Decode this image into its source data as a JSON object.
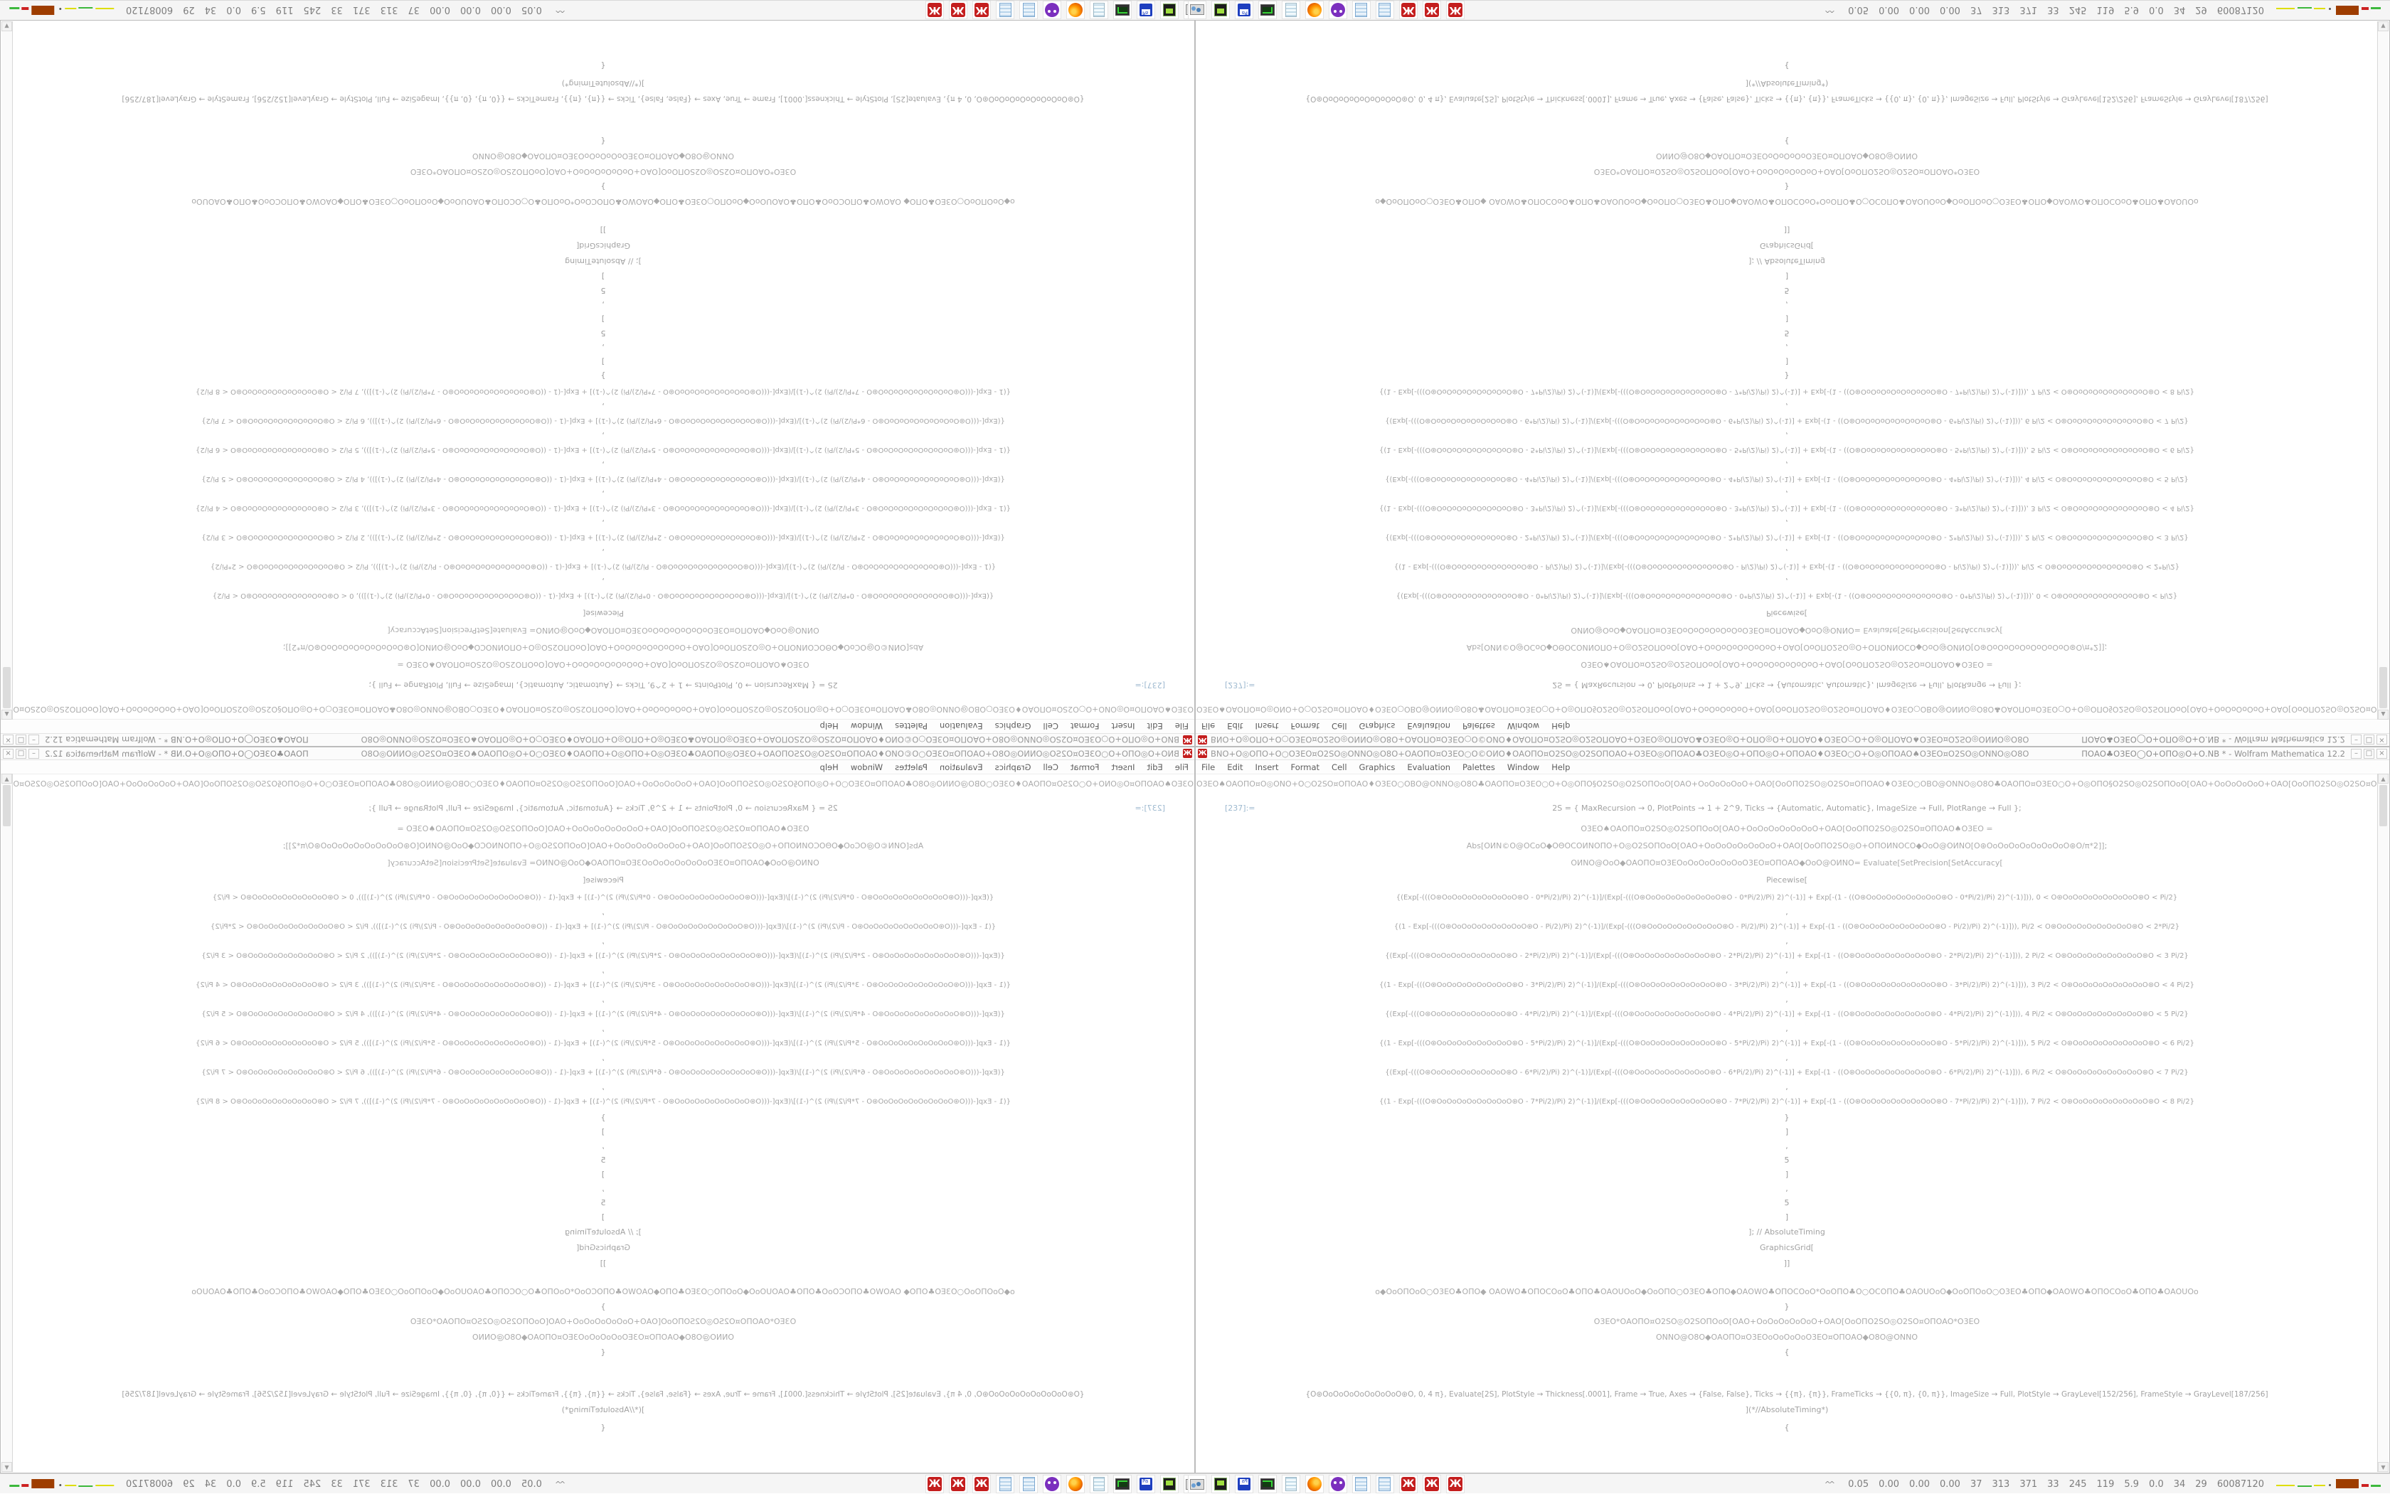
{
  "taskbar": {
    "status": {
      "chevron": "^^",
      "values": [
        "0.05",
        "0.00",
        "0.00",
        "0.00",
        "37",
        "313",
        "371",
        "33",
        "245",
        "119",
        "5.9",
        "0.0",
        "34",
        "29",
        "60087120"
      ],
      "chart_colors": [
        "#dede00",
        "#3cb83c",
        "#dede00",
        "#555555",
        "#9e3d00",
        "#cc2222",
        "#3cb83c"
      ]
    },
    "dock_icons": [
      {
        "name": "mathematica-icon",
        "cls": "ic-mma",
        "glyph": "Ж"
      },
      {
        "name": "mathematica-icon",
        "cls": "ic-mma",
        "glyph": "Ж"
      },
      {
        "name": "mathematica-icon",
        "cls": "ic-mma",
        "glyph": "Ж"
      },
      {
        "name": "calculator-icon",
        "cls": "ic-calc",
        "glyph": ""
      },
      {
        "name": "calculator-icon",
        "cls": "ic-calc",
        "glyph": ""
      },
      {
        "name": "purple-owl-app-icon",
        "cls": "ic-owl",
        "glyph": ""
      },
      {
        "name": "firefox-icon",
        "cls": "ic-firefox",
        "glyph": ""
      },
      {
        "name": "notepad-icon",
        "cls": "ic-notepad",
        "glyph": ""
      },
      {
        "name": "terminal-monitor-icon",
        "cls": "ic-screen",
        "glyph": ""
      },
      {
        "name": "floppy-save-icon",
        "cls": "ic-floppy",
        "glyph": ""
      },
      {
        "name": "console-64-icon",
        "cls": "ic-console",
        "glyph": ""
      },
      {
        "name": "monitor-gear-icon",
        "cls": "ic-mongear",
        "glyph": ""
      }
    ]
  },
  "window": {
    "icon_glyph": "Ж",
    "title_garbled": "ΒΝΟ+Ο◎ΟΠΟ+Ο○Ο3ΕΟ¤Ο2SΟ◎ΟΝΝΟ◎Ο8Ο+ΟΑΟΠΟ¤Ο3ΕΟ○Ο©ΟИΟ♦ΟΑΟΠΟ¤Ο2SΟ◎Ο2SΟΠΟΑΟ+Ο3ΕΟ◎ΟΠΟΑΟ♣Ο3ΕΟ◎Ο+ΟΠΟ◎Ο+ΟΠΟΑΟ♦Ο3ΕΟ○Ο+Ο◎ΟΠΟΑΟ♠Ο3ΕΟ¤Ο2SΟ◎ΟΝΝΟ◎Ο8Ο",
    "title_suffix": "ΠΟΑΟ♣Ο3ΕΟ◯Ο+ΟΠΟ◎Ο+Ο.NB * - Wolfram Mathematica 12.2",
    "controls": [
      {
        "name": "minimize-button",
        "glyph": "–"
      },
      {
        "name": "restore-button",
        "glyph": "□"
      },
      {
        "name": "close-button",
        "glyph": "×"
      }
    ],
    "menus": [
      {
        "label": "File"
      },
      {
        "label": "Edit"
      },
      {
        "label": "Insert"
      },
      {
        "label": "Format"
      },
      {
        "label": "Cell"
      },
      {
        "label": "Graphics"
      },
      {
        "label": "Evaluation"
      },
      {
        "label": "Palettes"
      },
      {
        "label": "Window"
      },
      {
        "label": "Help"
      }
    ],
    "scroll_up": "▲",
    "scroll_down": "▼",
    "content_rows": [
      {
        "cls": "g",
        "mt": 4,
        "t": "Ο3ΕΟ♠ΟΑΟΠΟ¤Ο◎ΟΝΟ+Ο○Ο2SΟ¤ΟΠΟΑΟ♦Ο3ΕΟ○ΟΒΟ@ΟΝΝΟ◎Ο8Ο♣ΟΑΟΠΟ¤Ο3ΕΟ○Ο+Ο◎ΟΠΟ§Ο2SΟ◎Ο2SΟΠΟοΟ[ΟΑΟ+ΟοΟοΟοΟοΟ+ΟΑΟ[ΟοΟΠΟ2SΟ◎Ο2SΟ¤ΟΠΟΑΟ♦Ο3ΕΟ○ΟΒΟ@ΟΝΝΟ◎Ο8Ο♣ΟΑΟΠΟ¤Ο3ΕΟ○Ο+Ο◎ΟΠΟ§Ο2SΟ◎Ο2SΟΠΟοΟ[ΟΑΟ+ΟοΟοΟοΟοΟ+ΟΑΟ[ΟοΟΠΟ2SΟ◎Ο2SΟ¤ΟΠΟΑΟ♦Ο3ΕΟ○ΟΒΟ@ΟΝΝΟ◎Ο8Ο♣ΟΑΟΠΟ"
      },
      {
        "cls": "c first",
        "mt": 12,
        "label": "[237]:=",
        "t": "2S = {  MaxRecursion → 0, PlotPoints → 1 + 2^9, Ticks → {Automatic, Automatic}, ImageSize → Full, PlotRange → Full  };"
      },
      {
        "cls": "g",
        "mt": 7,
        "t": "Ο3ΕΟ♠ΟΑΟΠΟ¤Ο2SΟ◎Ο2SΟΠΟοΟ[ΟΑΟ+ΟοΟοΟοΟοΟοΟοΟ+ΟΑΟ[ΟοΟΠΟ2SΟ◎Ο2SΟ¤ΟΠΟΑΟ♠Ο3ΕΟ  ="
      },
      {
        "cls": "g",
        "mt": 2,
        "t": "Abs[ΟИΝ©Ο@ΟCοΟ◆ΟΘΟCΟИΝΟΠΟ+Ο◎Ο2SΟΠΟοΟ[ΟΑΟ+ΟοΟοΟοΟοΟοΟοΟ+ΟΑΟ[ΟοΟΠΟ2SΟ◎Ο+ΟΠΟИΝΟCΟ◆ΟοΟ@ΟИΝΟ[Ο⊛ΟοΟοΟοΟοΟοΟοΟοΟ⊛Ο/π*2]];"
      },
      {
        "cls": "g",
        "mt": 2,
        "t": "ΟИΝΟ@ΟοΟ◆ΟΑΟΠΟ¤Ο3ΕΟοΟοΟοΟοΟοΟοΟ3ΕΟ¤ΟΠΟΑΟ◆ΟοΟ@ΟИΝΟ= Evaluate[SetPrecision[SetAccuracy["
      },
      {
        "cls": "c",
        "mt": 2,
        "t": "Piecewise["
      },
      {
        "cls": "p",
        "mt": 3,
        "t": "{(Exp[-(((Ο⊛ΟοΟοΟοΟοΟοΟοΟοΟ⊛Ο - 0*Pi/2)/Pi) 2)^(-1)]/(Exp[-(((Ο⊛ΟοΟοΟοΟοΟοΟοΟοΟ⊛Ο - 0*Pi/2)/Pi) 2)^(-1)] + Exp[-(1 - ((Ο⊛ΟοΟοΟοΟοΟοΟοΟοΟ⊛Ο - 0*Pi/2)/Pi) 2)^(-1)])), 0 < Ο⊛ΟοΟοΟοΟοΟοΟοΟοΟ⊛Ο < Pi/2}"
      },
      {
        "cls": "s",
        "t": ","
      },
      {
        "cls": "p",
        "t": "{(1 - Exp[-(((Ο⊛ΟοΟοΟοΟοΟοΟοΟοΟ⊛Ο - Pi/2)/Pi) 2)^(-1)]/(Exp[-(((Ο⊛ΟοΟοΟοΟοΟοΟοΟοΟ⊛Ο - Pi/2)/Pi) 2)^(-1)] + Exp[-(1 - ((Ο⊛ΟοΟοΟοΟοΟοΟοΟοΟ⊛Ο - Pi/2)/Pi) 2)^(-1)])), Pi/2 < Ο⊛ΟοΟοΟοΟοΟοΟοΟοΟ⊛Ο < 2*Pi/2}"
      },
      {
        "cls": "s",
        "t": ","
      },
      {
        "cls": "p",
        "t": "{(Exp[-(((Ο⊛ΟοΟοΟοΟοΟοΟοΟοΟ⊛Ο - 2*Pi/2)/Pi) 2)^(-1)]/(Exp[-(((Ο⊛ΟοΟοΟοΟοΟοΟοΟοΟ⊛Ο - 2*Pi/2)/Pi) 2)^(-1)] + Exp[-(1 - ((Ο⊛ΟοΟοΟοΟοΟοΟοΟοΟ⊛Ο - 2*Pi/2)/Pi) 2)^(-1)])), 2 Pi/2 < Ο⊛ΟοΟοΟοΟοΟοΟοΟοΟ⊛Ο < 3 Pi/2}"
      },
      {
        "cls": "s",
        "t": ","
      },
      {
        "cls": "p",
        "t": "{(1 - Exp[-(((Ο⊛ΟοΟοΟοΟοΟοΟοΟοΟ⊛Ο - 3*Pi/2)/Pi) 2)^(-1)]/(Exp[-(((Ο⊛ΟοΟοΟοΟοΟοΟοΟοΟ⊛Ο - 3*Pi/2)/Pi) 2)^(-1)] + Exp[-(1 - ((Ο⊛ΟοΟοΟοΟοΟοΟοΟοΟ⊛Ο - 3*Pi/2)/Pi) 2)^(-1)])), 3 Pi/2 < Ο⊛ΟοΟοΟοΟοΟοΟοΟοΟ⊛Ο < 4 Pi/2}"
      },
      {
        "cls": "s",
        "t": ","
      },
      {
        "cls": "p",
        "t": "{(Exp[-(((Ο⊛ΟοΟοΟοΟοΟοΟοΟοΟ⊛Ο - 4*Pi/2)/Pi) 2)^(-1)]/(Exp[-(((Ο⊛ΟοΟοΟοΟοΟοΟοΟοΟ⊛Ο - 4*Pi/2)/Pi) 2)^(-1)] + Exp[-(1 - ((Ο⊛ΟοΟοΟοΟοΟοΟοΟοΟ⊛Ο - 4*Pi/2)/Pi) 2)^(-1)])), 4 Pi/2 < Ο⊛ΟοΟοΟοΟοΟοΟοΟοΟ⊛Ο < 5 Pi/2}"
      },
      {
        "cls": "s",
        "t": ","
      },
      {
        "cls": "p",
        "t": "{(1 - Exp[-(((Ο⊛ΟοΟοΟοΟοΟοΟοΟοΟ⊛Ο - 5*Pi/2)/Pi) 2)^(-1)]/(Exp[-(((Ο⊛ΟοΟοΟοΟοΟοΟοΟοΟ⊛Ο - 5*Pi/2)/Pi) 2)^(-1)] + Exp[-(1 - ((Ο⊛ΟοΟοΟοΟοΟοΟοΟοΟ⊛Ο - 5*Pi/2)/Pi) 2)^(-1)])), 5 Pi/2 < Ο⊛ΟοΟοΟοΟοΟοΟοΟοΟ⊛Ο < 6 Pi/2}"
      },
      {
        "cls": "s",
        "t": ","
      },
      {
        "cls": "p",
        "t": "{(Exp[-(((Ο⊛ΟοΟοΟοΟοΟοΟοΟοΟ⊛Ο - 6*Pi/2)/Pi) 2)^(-1)]/(Exp[-(((Ο⊛ΟοΟοΟοΟοΟοΟοΟοΟ⊛Ο - 6*Pi/2)/Pi) 2)^(-1)] + Exp[-(1 - ((Ο⊛ΟοΟοΟοΟοΟοΟοΟοΟ⊛Ο - 6*Pi/2)/Pi) 2)^(-1)])), 6 Pi/2 < Ο⊛ΟοΟοΟοΟοΟοΟοΟοΟ⊛Ο < 7 Pi/2}"
      },
      {
        "cls": "s",
        "t": ","
      },
      {
        "cls": "p",
        "t": "{(1 - Exp[-(((Ο⊛ΟοΟοΟοΟοΟοΟοΟοΟ⊛Ο - 7*Pi/2)/Pi) 2)^(-1)]/(Exp[-(((Ο⊛ΟοΟοΟοΟοΟοΟοΟοΟ⊛Ο - 7*Pi/2)/Pi) 2)^(-1)] + Exp[-(1 - ((Ο⊛ΟοΟοΟοΟοΟοΟοΟοΟ⊛Ο - 7*Pi/2)/Pi) 2)^(-1)])), 7 Pi/2 < Ο⊛ΟοΟοΟοΟοΟοΟοΟοΟ⊛Ο < 8 Pi/2}"
      },
      {
        "cls": "s",
        "mt": 2,
        "t": "}"
      },
      {
        "cls": "s",
        "t": "]"
      },
      {
        "cls": "s",
        "t": ","
      },
      {
        "cls": "s",
        "t": "5"
      },
      {
        "cls": "s",
        "t": "]"
      },
      {
        "cls": "s",
        "t": ","
      },
      {
        "cls": "s",
        "t": "5"
      },
      {
        "cls": "s",
        "t": "]"
      },
      {
        "cls": "c",
        "t": "]; // AbsoluteTiming"
      },
      {
        "cls": "c",
        "t": "GraphicsGrid["
      },
      {
        "cls": "c",
        "t": "]]"
      },
      {
        "cls": "g",
        "mt": 18,
        "t": "ο◆ΟοΟΠΟοΟ○Ο3ΕΟ♣ΟΠΟ◆ ΟΑΟWΟ♣ΟΠΟCΟοΟ♣ΟΠΟ♣ΟΑΟUΟοΟ◆ΟοΟΠΟ○Ο3ΕΟ♣ΟΠΟ◆ΟΑΟWΟ♣ΟΠΟCΟοΟ*ΟοΟΠΟ♣Ο○ΟCΟΠΟ♣ΟΑΟUΟοΟ◆ΟοΟΠΟοΟ○Ο3ΕΟ♣ΟΠΟ◆ΟΑΟWΟ♣ΟΠΟCΟοΟ♣ΟΠΟ♣ΟΑΟUΟο"
      },
      {
        "cls": "s",
        "t": "}"
      },
      {
        "cls": "g",
        "t": "Ο3ΕΟ*ΟΑΟΠΟ¤Ο2SΟ◎Ο2SΟΠΟοΟ[ΟΑΟ+ΟοΟοΟοΟοΟοΟ+ΟΑΟ[ΟοΟΠΟ2SΟ◎Ο2SΟ¤ΟΠΟΑΟ*Ο3ΕΟ"
      },
      {
        "cls": "g",
        "t": "ΟΝΝΟ@Ο8Ο◆ΟΑΟΠΟ¤Ο3ΕΟοΟοΟοΟοΟ3ΕΟ¤ΟΠΟΑΟ◆Ο8Ο@ΟΝΝΟ"
      },
      {
        "cls": "s",
        "t": "{"
      },
      {
        "cls": "c plot",
        "mt": 38,
        "t": "{Ο⊛ΟοΟοΟοΟοΟοΟοΟοΟ⊛Ο, 0, 4 π}, Evaluate[2S], PlotStyle → Thickness[.0001], Frame → True, Axes → {False, False}, Ticks → {{π}, {π}}, FrameTicks → {{0, π}, {0, π}}, ImageSize → Full, PlotStyle → GrayLevel[152/256], FrameStyle → GrayLevel[187/256]"
      },
      {
        "cls": "c",
        "t": "](*//AbsoluteTiming*)"
      },
      {
        "cls": "s",
        "mt": 4,
        "t": "{"
      }
    ]
  }
}
